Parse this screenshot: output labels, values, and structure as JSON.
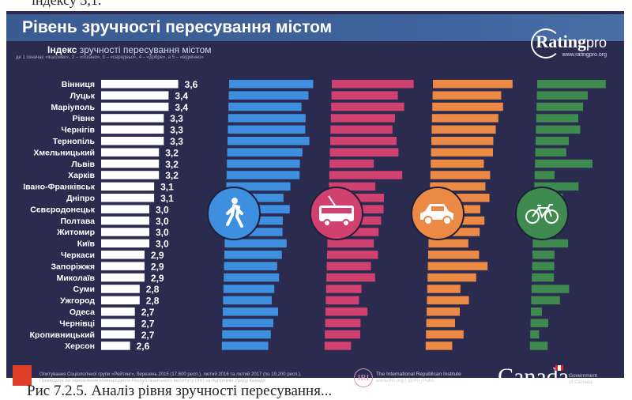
{
  "document": {
    "top_text": "індексу 3,1.",
    "caption": "Рис 7.2.5. Аналіз рівня зручності пересування..."
  },
  "header": {
    "title": "Рівень зручності пересування містом",
    "subtitle_bold": "Індекс",
    "subtitle_rest": " зручності пересування містом",
    "note": "де 1 означає «жахливо», 2 – «погано», 3 – «середньо», 4 – «добре», а 5 – «відмінно»",
    "logo_name": "Rating",
    "logo_suffix": "pro",
    "logo_url": "www.ratingpro.org"
  },
  "footer": {
    "source_line1": "Опитування Соціологічної групи «Рейтинг», березень 2015 (17,600 респ.), лютий 2016 та лютий 2017 (по 19,200 респ.).",
    "source_line2": "Проведене на замовлення Міжнародного Республіканського Інституту (IRI) за підтримки Уряду Канади",
    "iri_mark": "IRI",
    "iri_name": "The International Republican Institute",
    "iri_links": "www.IRI.org | @IRI_Polls",
    "canada": "Canada",
    "gov_line1": "Government",
    "gov_line2": "of Canada"
  },
  "chart_data": {
    "type": "bar",
    "orientation": "horizontal",
    "title": "Індекс зручності пересування містом",
    "scale": "1 – жахливо … 5 – відмінно",
    "categories": [
      "Вінниця",
      "Луцьк",
      "Маріуполь",
      "Рівне",
      "Чернігів",
      "Тернопіль",
      "Хмельницький",
      "Львів",
      "Харків",
      "Івано-Франківськ",
      "Дніпро",
      "Сєвєродонецьк",
      "Полтава",
      "Житомир",
      "Київ",
      "Черкаси",
      "Запоріжжя",
      "Миколаїв",
      "Суми",
      "Ужгород",
      "Одеса",
      "Чернівці",
      "Кропивницький",
      "Херсон"
    ],
    "values": [
      3.6,
      3.4,
      3.4,
      3.3,
      3.3,
      3.3,
      3.2,
      3.2,
      3.2,
      3.1,
      3.1,
      3.0,
      3.0,
      3.0,
      3.0,
      2.9,
      2.9,
      2.9,
      2.8,
      2.8,
      2.7,
      2.7,
      2.7,
      2.6
    ],
    "value_labels": [
      "3,6",
      "3,4",
      "3,4",
      "3,3",
      "3,3",
      "3,3",
      "3,2",
      "3,2",
      "3,2",
      "3,1",
      "3,1",
      "3,0",
      "3,0",
      "3,0",
      "3,0",
      "2,9",
      "2,9",
      "2,9",
      "2,8",
      "2,8",
      "2,7",
      "2,7",
      "2,7",
      "2,6"
    ],
    "series": [
      {
        "icon": "pedestrian-icon",
        "color": "#3f8fe0",
        "values": [
          3.8,
          3.6,
          3.3,
          3.5,
          3.5,
          3.7,
          3.4,
          3.3,
          3.3,
          2.9,
          2.6,
          2.9,
          2.6,
          2.6,
          2.8,
          2.6,
          2.4,
          2.5,
          2.3,
          2.2,
          2.5,
          2.3,
          2.2,
          2.1
        ]
      },
      {
        "icon": "trolleybus-icon",
        "color": "#d0416f",
        "values": [
          3.7,
          3.0,
          3.3,
          2.9,
          2.8,
          3.0,
          3.1,
          2.0,
          3.3,
          2.1,
          2.5,
          2.5,
          2.4,
          2.3,
          2.1,
          2.3,
          2.0,
          2.2,
          1.6,
          1.5,
          1.9,
          1.6,
          1.6,
          1.2
        ]
      },
      {
        "icon": "car-icon",
        "color": "#ec8a45",
        "values": [
          3.6,
          3.1,
          3.2,
          3.0,
          2.9,
          2.8,
          2.8,
          2.4,
          2.7,
          2.5,
          2.7,
          2.3,
          2.5,
          2.3,
          1.8,
          2.3,
          2.7,
          2.2,
          1.5,
          1.9,
          1.5,
          1.3,
          1.7,
          1.2
        ]
      },
      {
        "icon": "bicycle-icon",
        "color": "#3f8a4f",
        "values": [
          3.1,
          2.3,
          2.1,
          1.9,
          2.0,
          1.5,
          1.4,
          2.6,
          0.9,
          2.0,
          1.3,
          1.1,
          1.4,
          1.1,
          1.6,
          1.0,
          1.0,
          1.0,
          1.7,
          1.3,
          0.5,
          0.8,
          0.4,
          0.8
        ]
      }
    ],
    "bar_color_main": "#ffffff",
    "background": "#2b2b4f",
    "grid": false,
    "legend": "icons"
  }
}
